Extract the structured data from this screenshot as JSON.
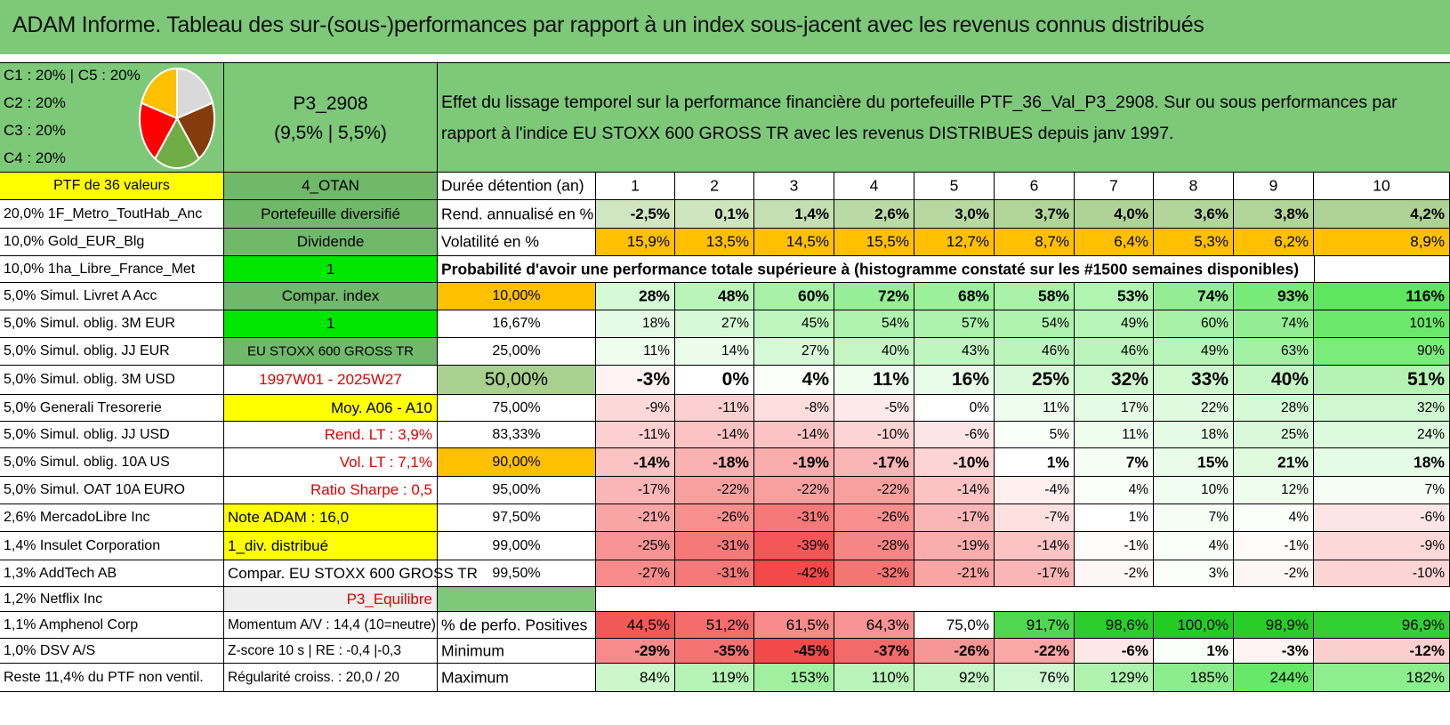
{
  "title": "ADAM Informe. Tableau des sur-(sous-)performances par rapport à un index sous-jacent avec les revenus connus distribués",
  "header": {
    "legend_lines": [
      "C1 : 20% | C5 : 20%",
      "C2 : 20%",
      "C3 : 20%",
      "C4 : 20%"
    ],
    "pie": {
      "slices": [
        {
          "label": "C1",
          "value": 20,
          "color": "#d9d9d9"
        },
        {
          "label": "C2",
          "value": 20,
          "color": "#843c0c"
        },
        {
          "label": "C3",
          "value": 20,
          "color": "#70ad47"
        },
        {
          "label": "C4",
          "value": 20,
          "color": "#ff0000"
        },
        {
          "label": "C5",
          "value": 20,
          "color": "#ffc000"
        }
      ]
    },
    "portfolio_name": "P3_2908",
    "portfolio_stats": "(9,5% | 5,5%)",
    "description_line1": "Effet du lissage temporel sur la performance financière du portefeuille PTF_36_Val_P3_2908. Sur ou sous performances par",
    "description_line2": "rapport à l'indice EU STOXX 600 GROSS TR avec les revenus DISTRIBUES depuis janv 1997."
  },
  "holdings": [
    "PTF de 36 valeurs",
    "20,0% 1F_Metro_ToutHab_Anc",
    "10,0% Gold_EUR_Blg",
    "10,0% 1ha_Libre_France_Met",
    "5,0% Simul. Livret A Acc",
    "5,0% Simul. oblig. 3M EUR",
    "5,0% Simul. oblig. JJ EUR",
    "5,0% Simul. oblig. 3M USD",
    "5,0% Generali Tresorerie",
    "5,0% Simul. oblig. JJ USD",
    "5,0% Simul. oblig. 10A US",
    "5,0% Simul. OAT 10A EURO",
    "2,6% MercadoLibre Inc",
    "1,4% Insulet Corporation",
    "1,3% AddTech AB",
    "1,2% Netflix Inc",
    "1,1% Amphenol Corp",
    "1,0% DSV A/S",
    "Reste 11,4% du PTF non ventil."
  ],
  "info": [
    "4_OTAN",
    "Portefeuille diversifié",
    "Dividende",
    "1",
    "Compar. index",
    "1",
    "EU STOXX 600 GROSS TR",
    "1997W01 - 2025W27",
    "Moy. A06 - A10",
    "Rend. LT : 3,9%",
    "Vol. LT : 7,1%",
    "Ratio Sharpe : 0,5",
    "Note ADAM : 16,0",
    "1_div. distribué",
    "Compar. EU STOXX 600 GROSS TR",
    "P3_Equilibre",
    "Momentum A/V : 14,4 (10=neutre)",
    "Z-score 10 s | RE : -0,4 |-0,3",
    "Régularité croiss. : 20,0 / 20"
  ],
  "table": {
    "duration_label": "Durée détention (an)",
    "years": [
      "1",
      "2",
      "3",
      "4",
      "5",
      "6",
      "7",
      "8",
      "9",
      "10"
    ],
    "rend_label": "Rend. annualisé en %",
    "rend": [
      "-2,5%",
      "0,1%",
      "1,4%",
      "2,6%",
      "3,0%",
      "3,7%",
      "4,0%",
      "3,6%",
      "3,8%",
      "4,2%"
    ],
    "vol_label": "Volatilité en %",
    "vol": [
      "15,9%",
      "13,5%",
      "14,5%",
      "15,5%",
      "12,7%",
      "8,7%",
      "6,4%",
      "5,3%",
      "6,2%",
      "8,9%"
    ],
    "prob_title": "Probabilité d'avoir une performance totale supérieure à (histogramme constaté sur les #1500 semaines disponibles)",
    "prob_rows": [
      {
        "p": "10,00%",
        "v": [
          "28%",
          "48%",
          "60%",
          "72%",
          "68%",
          "58%",
          "53%",
          "74%",
          "93%",
          "116%"
        ]
      },
      {
        "p": "16,67%",
        "v": [
          "18%",
          "27%",
          "45%",
          "54%",
          "57%",
          "54%",
          "49%",
          "60%",
          "74%",
          "101%"
        ]
      },
      {
        "p": "25,00%",
        "v": [
          "11%",
          "14%",
          "27%",
          "40%",
          "43%",
          "46%",
          "46%",
          "49%",
          "63%",
          "90%"
        ]
      },
      {
        "p": "50,00%",
        "v": [
          "-3%",
          "0%",
          "4%",
          "11%",
          "16%",
          "25%",
          "32%",
          "33%",
          "40%",
          "51%"
        ]
      },
      {
        "p": "75,00%",
        "v": [
          "-9%",
          "-11%",
          "-8%",
          "-5%",
          "0%",
          "11%",
          "17%",
          "22%",
          "28%",
          "32%"
        ]
      },
      {
        "p": "83,33%",
        "v": [
          "-11%",
          "-14%",
          "-14%",
          "-10%",
          "-6%",
          "5%",
          "11%",
          "18%",
          "25%",
          "24%"
        ]
      },
      {
        "p": "90,00%",
        "v": [
          "-14%",
          "-18%",
          "-19%",
          "-17%",
          "-10%",
          "1%",
          "7%",
          "15%",
          "21%",
          "18%"
        ]
      },
      {
        "p": "95,00%",
        "v": [
          "-17%",
          "-22%",
          "-22%",
          "-22%",
          "-14%",
          "-4%",
          "4%",
          "10%",
          "12%",
          "7%"
        ]
      },
      {
        "p": "97,50%",
        "v": [
          "-21%",
          "-26%",
          "-31%",
          "-26%",
          "-17%",
          "-7%",
          "1%",
          "7%",
          "4%",
          "-6%"
        ]
      },
      {
        "p": "99,00%",
        "v": [
          "-25%",
          "-31%",
          "-39%",
          "-28%",
          "-19%",
          "-14%",
          "-1%",
          "4%",
          "-1%",
          "-9%"
        ]
      },
      {
        "p": "99,50%",
        "v": [
          "-27%",
          "-31%",
          "-42%",
          "-32%",
          "-21%",
          "-17%",
          "-2%",
          "3%",
          "-2%",
          "-10%"
        ]
      }
    ],
    "pos_label": "% de perfo. Positives",
    "pos": [
      "44,5%",
      "51,2%",
      "61,5%",
      "64,3%",
      "75,0%",
      "91,7%",
      "98,6%",
      "100,0%",
      "98,9%",
      "96,9%"
    ],
    "min_label": "Minimum",
    "min": [
      "-29%",
      "-35%",
      "-45%",
      "-37%",
      "-26%",
      "-22%",
      "-6%",
      "1%",
      "-3%",
      "-12%"
    ],
    "max_label": "Maximum",
    "max": [
      "84%",
      "119%",
      "153%",
      "110%",
      "92%",
      "76%",
      "129%",
      "185%",
      "244%",
      "182%"
    ]
  },
  "colors": {
    "title_bg": "#7ec87a",
    "header_green": "#7ec87a",
    "label_green": "#70b86a",
    "yellow": "#ffff00",
    "bright_green": "#00e600",
    "orange": "#ffc000",
    "prob50_bg": "#a9d08e",
    "text_red": "#e00000"
  }
}
